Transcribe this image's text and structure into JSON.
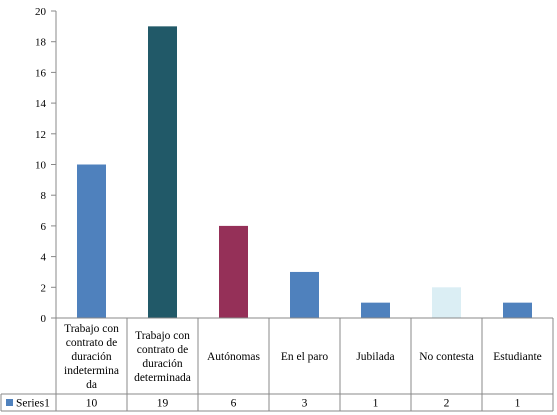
{
  "chart_data": {
    "type": "bar",
    "categories": [
      [
        "Trabajo con",
        "contrato de",
        "duración",
        "indetermina",
        "da"
      ],
      [
        "Trabajo con",
        "contrato de",
        "duración",
        "determinada"
      ],
      [
        "Autónomas"
      ],
      [
        "En el paro"
      ],
      [
        "Jubilada"
      ],
      [
        "No contesta"
      ],
      [
        "Estudiante"
      ]
    ],
    "series": [
      {
        "name": "Series1",
        "values": [
          10,
          19,
          6,
          3,
          1,
          2,
          1
        ]
      }
    ],
    "bar_colors": [
      "#4f81bd",
      "#215968",
      "#953058",
      "#4f81bd",
      "#4f81bd",
      "#dbeef4",
      "#4f81bd"
    ],
    "legend_color": "#4f81bd",
    "ylim": [
      0,
      20
    ],
    "yticks": [
      0,
      2,
      4,
      6,
      8,
      10,
      12,
      14,
      16,
      18,
      20
    ],
    "grid": false,
    "legend": "data-table-bottom",
    "data_table_values": [
      "10",
      "19",
      "6",
      "3",
      "1",
      "2",
      "1"
    ]
  }
}
